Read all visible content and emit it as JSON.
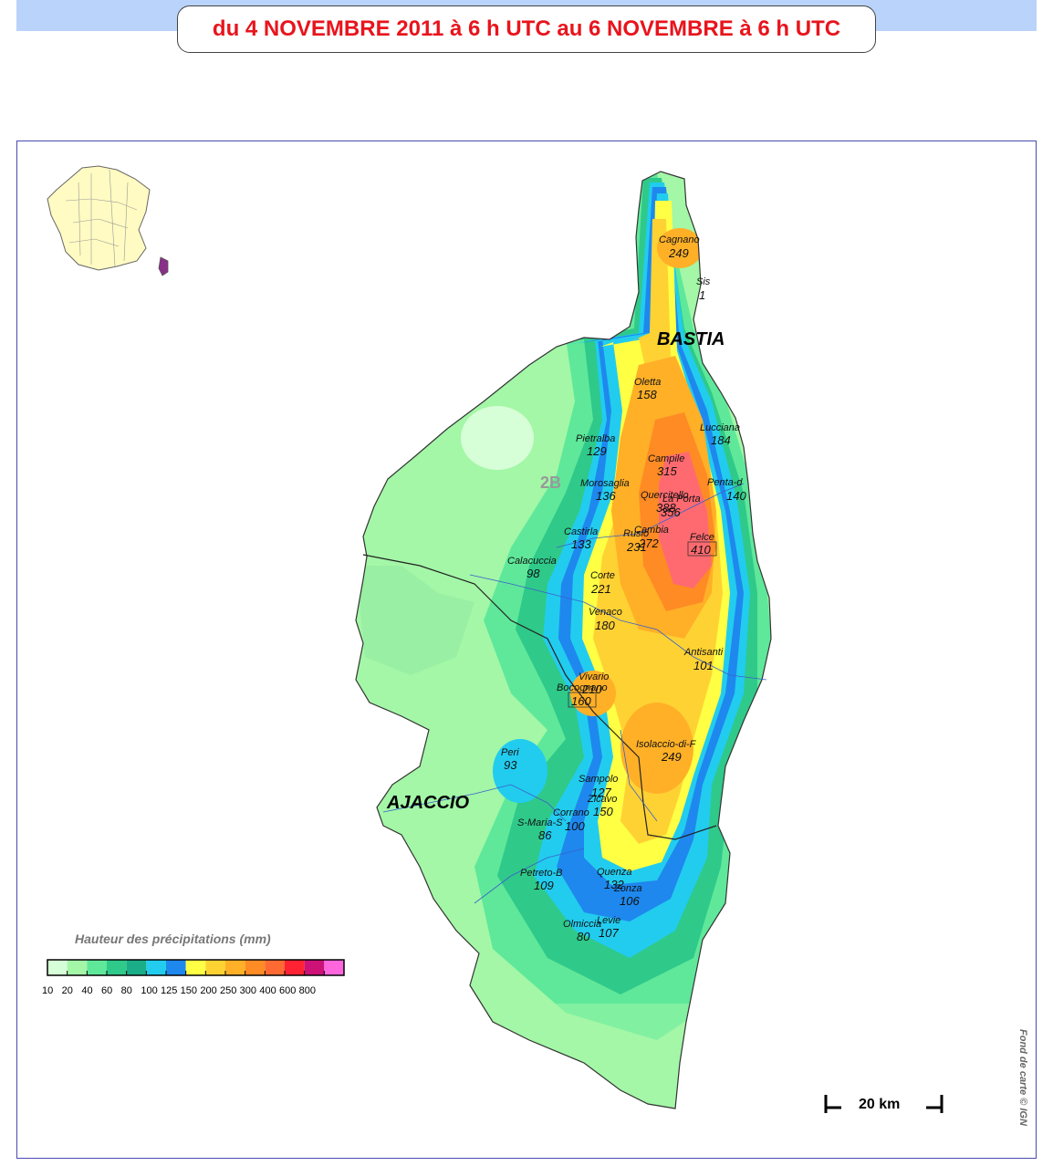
{
  "title": "du 4 NOVEMBRE 2011 à 6 h UTC au 6 NOVEMBRE à 6 h UTC",
  "cities": {
    "bastia": "BASTIA",
    "ajaccio": "AJACCIO"
  },
  "department_code": "2B",
  "stations": [
    {
      "name": "Cagnano",
      "value": "249"
    },
    {
      "name": "Sis",
      "value": "1"
    },
    {
      "name": "Oletta",
      "value": "158"
    },
    {
      "name": "Lucciana",
      "value": "184"
    },
    {
      "name": "Pietralba",
      "value": "129"
    },
    {
      "name": "Campile",
      "value": "315"
    },
    {
      "name": "Penta-d",
      "value": "140"
    },
    {
      "name": "Morosaglia",
      "value": "136"
    },
    {
      "name": "Quercitello",
      "value": "388"
    },
    {
      "name": "La Porta",
      "value": "356"
    },
    {
      "name": "Castirla",
      "value": "133"
    },
    {
      "name": "Rusio",
      "value": "231"
    },
    {
      "name": "Cambia",
      "value": "272"
    },
    {
      "name": "Felce",
      "value": "410"
    },
    {
      "name": "Calacuccia",
      "value": "98"
    },
    {
      "name": "Corte",
      "value": "221"
    },
    {
      "name": "Venaco",
      "value": "180"
    },
    {
      "name": "Antisanti",
      "value": "101"
    },
    {
      "name": "Vivario",
      "value": "210"
    },
    {
      "name": "Bocognano",
      "value": "160"
    },
    {
      "name": "Isolaccio-di-F",
      "value": "249"
    },
    {
      "name": "Peri",
      "value": "93"
    },
    {
      "name": "Sampolo",
      "value": "127"
    },
    {
      "name": "Zicavo",
      "value": "150"
    },
    {
      "name": "Corrano",
      "value": "100"
    },
    {
      "name": "S-Maria-S",
      "value": "86"
    },
    {
      "name": "Petreto-B",
      "value": "109"
    },
    {
      "name": "Quenza",
      "value": "132"
    },
    {
      "name": "Zonza",
      "value": "106"
    },
    {
      "name": "Levie",
      "value": "107"
    },
    {
      "name": "Olmiccia",
      "value": "80"
    }
  ],
  "legend": {
    "title": "Hauteur des précipitations (mm)",
    "ticks": [
      "10",
      "20",
      "40",
      "60",
      "80",
      "100",
      "125",
      "150",
      "200",
      "250",
      "300",
      "400",
      "600",
      "800"
    ],
    "colors": [
      "#d7ffd7",
      "#a3f7a7",
      "#5fe89a",
      "#2fc98a",
      "#1aae88",
      "#22ccee",
      "#1e88ee",
      "#ffff44",
      "#ffd233",
      "#ffb027",
      "#ff8b24",
      "#ff6a33",
      "#ff2233",
      "#cc1177",
      "#ff66dd"
    ]
  },
  "scale_bar": "20 km",
  "credit": "Fond de carte © IGN"
}
